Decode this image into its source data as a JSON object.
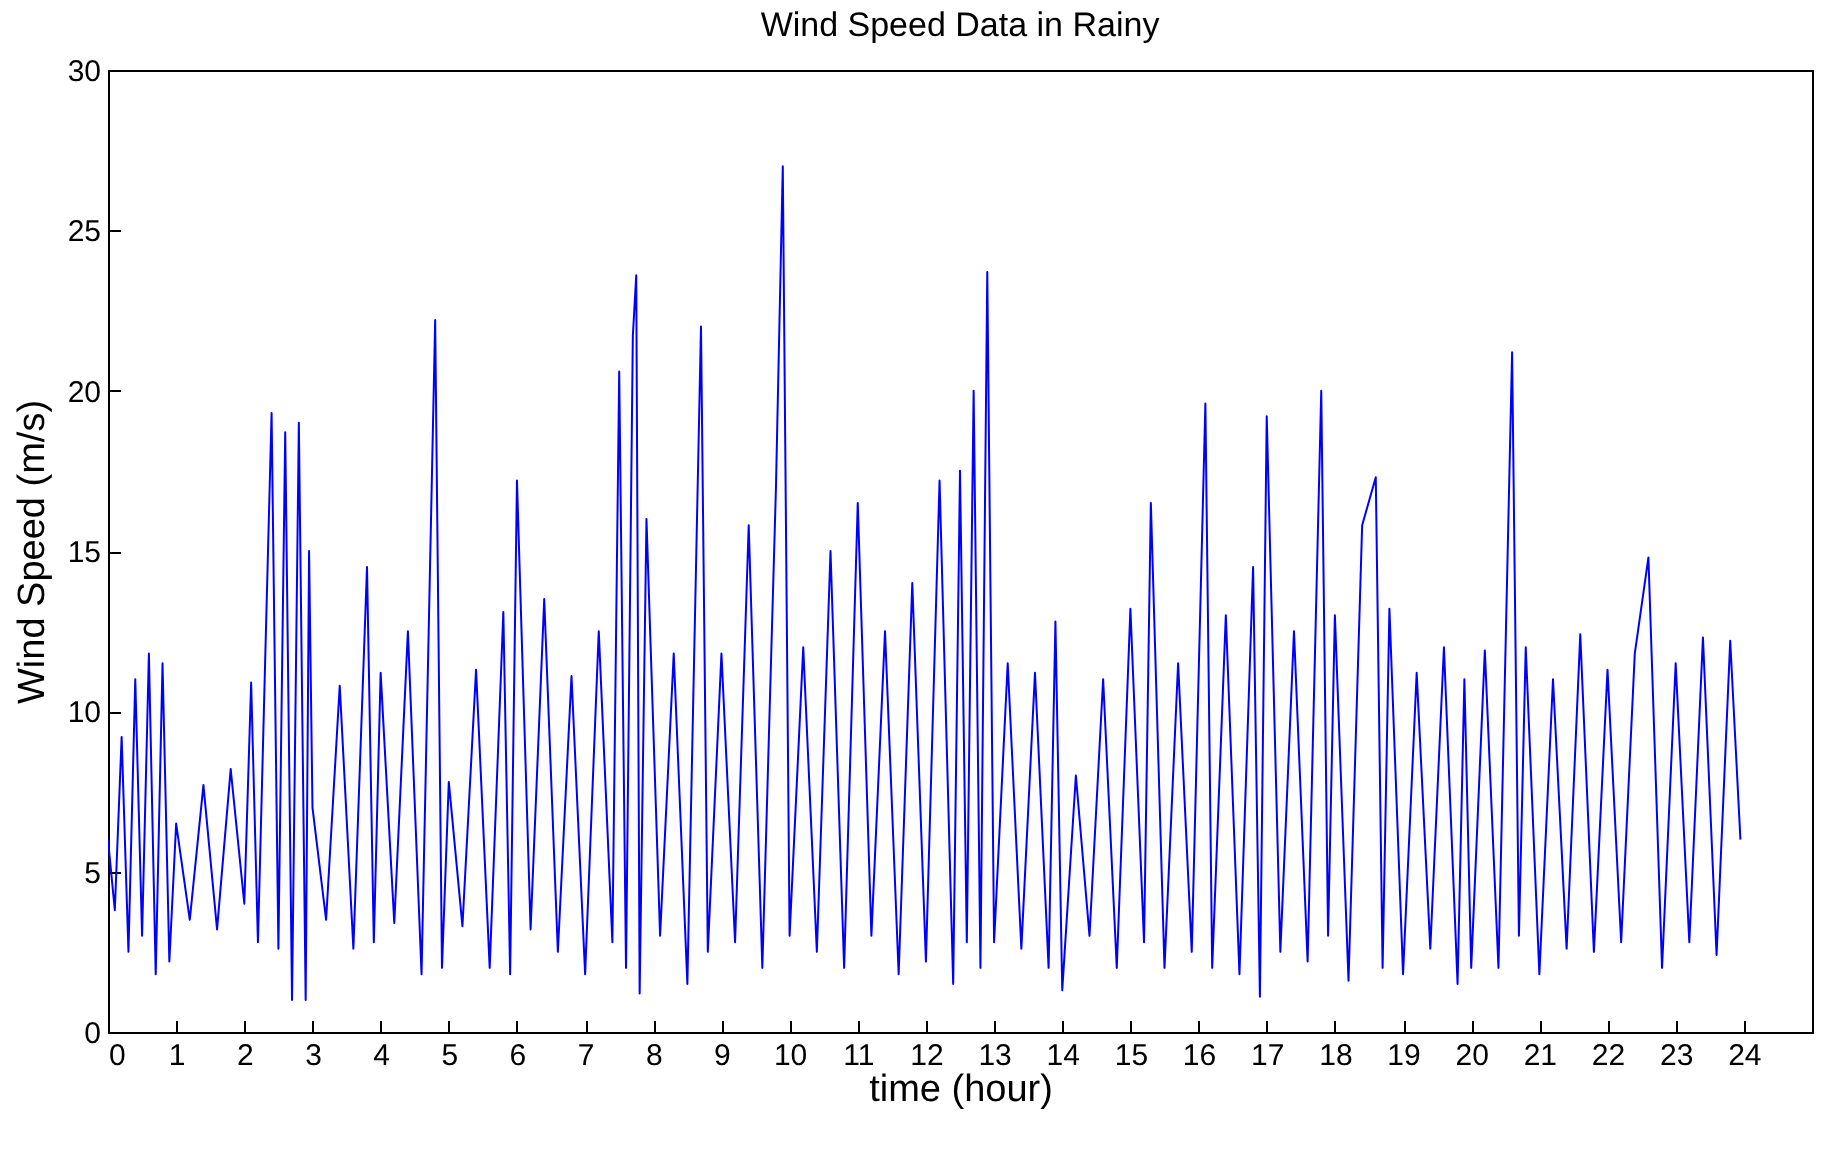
{
  "chart_data": {
    "type": "line",
    "title": "Wind Speed Data in Rainy",
    "xlabel": "time (hour)",
    "ylabel": "Wind Speed (m/s)",
    "x": [
      0,
      0.1,
      0.2,
      0.3,
      0.4,
      0.5,
      0.6,
      0.7,
      0.8,
      0.9,
      1.0,
      1.2,
      1.4,
      1.6,
      1.8,
      2.0,
      2.1,
      2.2,
      2.3,
      2.4,
      2.5,
      2.6,
      2.7,
      2.8,
      2.9,
      2.95,
      3.0,
      3.2,
      3.4,
      3.6,
      3.8,
      3.9,
      4.0,
      4.2,
      4.4,
      4.6,
      4.8,
      4.9,
      5.0,
      5.2,
      5.4,
      5.6,
      5.8,
      5.9,
      6.0,
      6.2,
      6.4,
      6.6,
      6.8,
      7.0,
      7.2,
      7.4,
      7.5,
      7.6,
      7.7,
      7.75,
      7.8,
      7.9,
      8.1,
      8.3,
      8.5,
      8.7,
      8.8,
      9.0,
      9.2,
      9.4,
      9.6,
      9.8,
      9.9,
      10.0,
      10.2,
      10.4,
      10.6,
      10.8,
      11.0,
      11.2,
      11.4,
      11.6,
      11.8,
      12.0,
      12.2,
      12.4,
      12.5,
      12.6,
      12.7,
      12.8,
      12.9,
      13.0,
      13.2,
      13.4,
      13.6,
      13.8,
      13.9,
      14.0,
      14.2,
      14.4,
      14.6,
      14.8,
      15.0,
      15.2,
      15.3,
      15.5,
      15.7,
      15.9,
      16.1,
      16.2,
      16.4,
      16.6,
      16.8,
      16.9,
      17.0,
      17.2,
      17.4,
      17.6,
      17.8,
      17.9,
      18.0,
      18.2,
      18.4,
      18.6,
      18.7,
      18.8,
      19.0,
      19.2,
      19.4,
      19.6,
      19.8,
      19.9,
      20.0,
      20.2,
      20.4,
      20.6,
      20.7,
      20.8,
      21.0,
      21.2,
      21.4,
      21.6,
      21.8,
      22.0,
      22.2,
      22.4,
      22.6,
      22.8,
      23.0,
      23.2,
      23.4,
      23.6,
      23.8,
      23.95
    ],
    "series": [
      {
        "color": "#0000ff",
        "values": [
          6.0,
          3.8,
          9.2,
          2.5,
          11.0,
          3.0,
          11.8,
          1.8,
          11.5,
          2.2,
          6.5,
          3.5,
          7.7,
          3.2,
          8.2,
          4.0,
          10.9,
          2.8,
          11.1,
          19.3,
          2.6,
          18.7,
          1.0,
          19.0,
          1.0,
          15.0,
          7.0,
          3.5,
          10.8,
          2.6,
          14.5,
          2.8,
          11.2,
          3.4,
          12.5,
          1.8,
          22.2,
          2.0,
          7.8,
          3.3,
          11.3,
          2.0,
          13.1,
          1.8,
          17.2,
          3.2,
          13.5,
          2.5,
          11.1,
          1.8,
          12.5,
          2.8,
          20.6,
          2.0,
          21.7,
          23.6,
          1.2,
          16.0,
          3.0,
          11.8,
          1.5,
          22.0,
          2.5,
          11.8,
          2.8,
          15.8,
          2.0,
          17.0,
          27.0,
          3.0,
          12.0,
          2.5,
          15.0,
          2.0,
          16.5,
          3.0,
          12.5,
          1.8,
          14.0,
          2.2,
          17.2,
          1.5,
          17.5,
          2.8,
          20.0,
          2.0,
          23.7,
          2.8,
          11.5,
          2.6,
          11.2,
          2.0,
          12.8,
          1.3,
          8.0,
          3.0,
          11.0,
          2.0,
          13.2,
          2.8,
          16.5,
          2.0,
          11.5,
          2.5,
          19.6,
          2.0,
          13.0,
          1.8,
          14.5,
          1.1,
          19.2,
          2.5,
          12.5,
          2.2,
          20.0,
          3.0,
          13.0,
          1.6,
          15.8,
          17.3,
          2.0,
          13.2,
          1.8,
          11.2,
          2.6,
          12.0,
          1.5,
          11.0,
          2.0,
          11.9,
          2.0,
          21.2,
          3.0,
          12.0,
          1.8,
          11.0,
          2.6,
          12.4,
          2.5,
          11.3,
          2.8,
          11.8,
          14.8,
          2.0,
          11.5,
          2.8,
          12.3,
          2.4,
          12.2,
          6.0
        ]
      }
    ],
    "xlim": [
      0,
      25
    ],
    "xticks": [
      0,
      1,
      2,
      3,
      4,
      5,
      6,
      7,
      8,
      9,
      10,
      11,
      12,
      13,
      14,
      15,
      16,
      17,
      18,
      19,
      20,
      21,
      22,
      23,
      24
    ],
    "ylim": [
      0,
      30
    ],
    "yticks": [
      0,
      5,
      10,
      15,
      20,
      25,
      30
    ],
    "grid": false,
    "legend": false
  }
}
